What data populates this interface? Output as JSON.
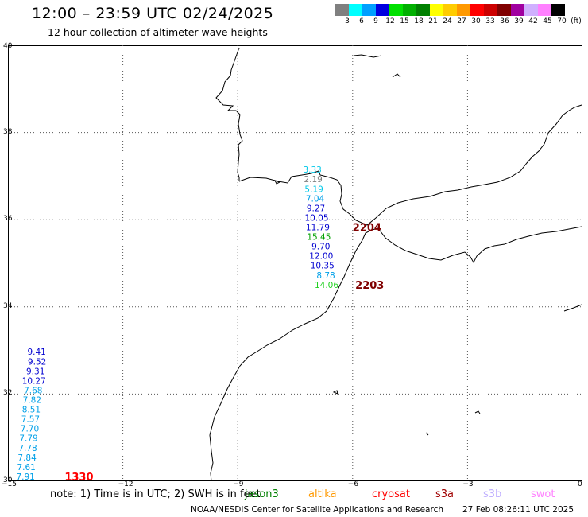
{
  "header": {
    "title": "12:00 – 23:59 UTC 02/24/2025",
    "subtitle": "12 hour collection of altimeter wave heights"
  },
  "colorbar": {
    "swatch_colors": [
      "#808080",
      "#00ffff",
      "#00a0ff",
      "#0000e0",
      "#00e000",
      "#00b000",
      "#008000",
      "#ffff00",
      "#ffcc00",
      "#ff9900",
      "#ff0000",
      "#cc0000",
      "#800000",
      "#a000a0",
      "#d0b0ff",
      "#ff80ff",
      "#000000"
    ],
    "labels": [
      "3",
      "6",
      "9",
      "12",
      "15",
      "18",
      "21",
      "24",
      "27",
      "30",
      "33",
      "36",
      "39",
      "42",
      "45",
      "70",
      "(ft)"
    ]
  },
  "axes": {
    "lat_ticks": [
      "40",
      "38",
      "36",
      "34",
      "32",
      "30"
    ],
    "lon_ticks": [
      "−15",
      "−12",
      "−9",
      "−6",
      "−3",
      "0"
    ]
  },
  "measurements": [
    {
      "value": "3.33",
      "lon": -7.05,
      "lat": 37.15,
      "color": "#00c8e8"
    },
    {
      "value": "2.19",
      "lon": -7.03,
      "lat": 36.93,
      "color": "#808080"
    },
    {
      "value": "5.19",
      "lon": -7.01,
      "lat": 36.71,
      "color": "#00c8e8"
    },
    {
      "value": "7.04",
      "lon": -6.98,
      "lat": 36.49,
      "color": "#00a0e8"
    },
    {
      "value": "9.27",
      "lon": -6.96,
      "lat": 36.27,
      "color": "#0000d0"
    },
    {
      "value": "10.05",
      "lon": -6.94,
      "lat": 36.05,
      "color": "#0000d0"
    },
    {
      "value": "11.79",
      "lon": -6.91,
      "lat": 35.83,
      "color": "#0000d0"
    },
    {
      "value": "15.45",
      "lon": -6.88,
      "lat": 35.61,
      "color": "#00a000"
    },
    {
      "value": "9.70",
      "lon": -6.83,
      "lat": 35.39,
      "color": "#0000d0"
    },
    {
      "value": "12.00",
      "lon": -6.82,
      "lat": 35.17,
      "color": "#0000d0"
    },
    {
      "value": "10.35",
      "lon": -6.79,
      "lat": 34.95,
      "color": "#0000d0"
    },
    {
      "value": "8.78",
      "lon": -6.7,
      "lat": 34.73,
      "color": "#00a0e8"
    },
    {
      "value": "14.06",
      "lon": -6.68,
      "lat": 34.51,
      "color": "#20d020"
    },
    {
      "value": "9.41",
      "lon": -14.25,
      "lat": 32.97,
      "color": "#0000d0"
    },
    {
      "value": "9.52",
      "lon": -14.24,
      "lat": 32.75,
      "color": "#0000d0"
    },
    {
      "value": "9.31",
      "lon": -14.28,
      "lat": 32.53,
      "color": "#0000d0"
    },
    {
      "value": "10.27",
      "lon": -14.32,
      "lat": 32.31,
      "color": "#0000d0"
    },
    {
      "value": "7.68",
      "lon": -14.34,
      "lat": 32.09,
      "color": "#00a0e8"
    },
    {
      "value": "7.82",
      "lon": -14.37,
      "lat": 31.87,
      "color": "#00a0e8"
    },
    {
      "value": "8.51",
      "lon": -14.39,
      "lat": 31.65,
      "color": "#00a0e8"
    },
    {
      "value": "7.57",
      "lon": -14.41,
      "lat": 31.43,
      "color": "#00a0e8"
    },
    {
      "value": "7.70",
      "lon": -14.43,
      "lat": 31.21,
      "color": "#00a0e8"
    },
    {
      "value": "7.79",
      "lon": -14.46,
      "lat": 30.99,
      "color": "#00a0e8"
    },
    {
      "value": "7.78",
      "lon": -14.48,
      "lat": 30.77,
      "color": "#00a0e8"
    },
    {
      "value": "7.84",
      "lon": -14.5,
      "lat": 30.55,
      "color": "#00a0e8"
    },
    {
      "value": "7.61",
      "lon": -14.52,
      "lat": 30.33,
      "color": "#00a0e8"
    },
    {
      "value": "7.91",
      "lon": -14.54,
      "lat": 30.11,
      "color": "#00a0e8"
    }
  ],
  "pass_times": [
    {
      "value": "2204",
      "lon": -6.0,
      "lat": 35.83,
      "color": "#800000"
    },
    {
      "value": "2203",
      "lon": -5.93,
      "lat": 34.51,
      "color": "#800000"
    },
    {
      "value": "1330",
      "lon": -13.52,
      "lat": 30.11,
      "color": "#ff0000"
    }
  ],
  "footer": {
    "note": "note:  1) Time is in UTC;  2) SWH is in feet",
    "satellites": [
      {
        "name": "jason3",
        "color": "#008000"
      },
      {
        "name": "altika",
        "color": "#ff9900"
      },
      {
        "name": "cryosat",
        "color": "#ff0000"
      },
      {
        "name": "s3a",
        "color": "#a00000"
      },
      {
        "name": "s3b",
        "color": "#c0b0ff"
      },
      {
        "name": "swot",
        "color": "#ff80ff"
      }
    ],
    "credit": "NOAA/NESDIS Center for Satellite Applications and Research",
    "timestamp": "27 Feb 08:26:11 UTC 2025"
  }
}
